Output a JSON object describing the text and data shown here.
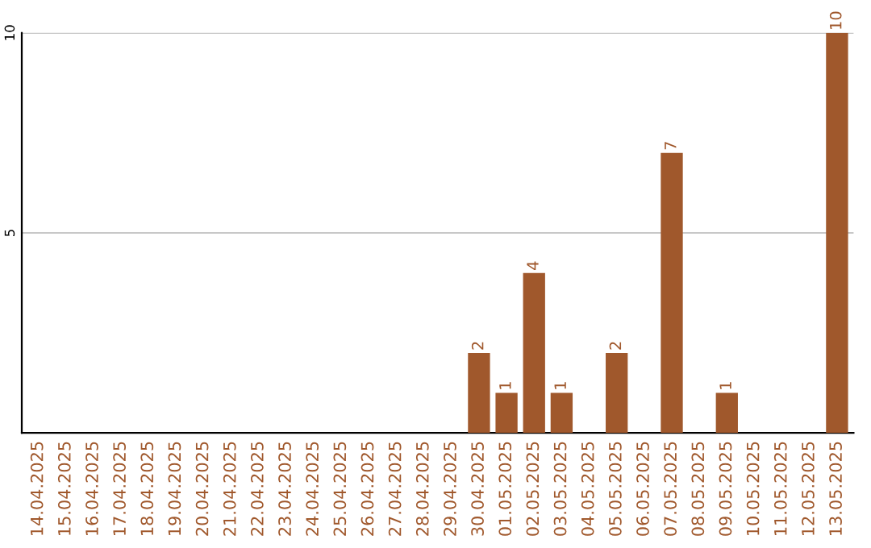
{
  "chart_data": {
    "type": "bar",
    "categories": [
      "14.04.2025",
      "15.04.2025",
      "16.04.2025",
      "17.04.2025",
      "18.04.2025",
      "19.04.2025",
      "20.04.2025",
      "21.04.2025",
      "22.04.2025",
      "23.04.2025",
      "24.04.2025",
      "25.04.2025",
      "26.04.2025",
      "27.04.2025",
      "28.04.2025",
      "29.04.2025",
      "30.04.2025",
      "01.05.2025",
      "02.05.2025",
      "03.05.2025",
      "04.05.2025",
      "05.05.2025",
      "06.05.2025",
      "07.05.2025",
      "08.05.2025",
      "09.05.2025",
      "10.05.2025",
      "11.05.2025",
      "12.05.2025",
      "13.05.2025"
    ],
    "values": [
      0,
      0,
      0,
      0,
      0,
      0,
      0,
      0,
      0,
      0,
      0,
      0,
      0,
      0,
      0,
      0,
      2,
      1,
      4,
      1,
      0,
      2,
      0,
      7,
      0,
      1,
      0,
      0,
      0,
      10
    ],
    "value_labels": [
      null,
      null,
      null,
      null,
      null,
      null,
      null,
      null,
      null,
      null,
      null,
      null,
      null,
      null,
      null,
      null,
      "2",
      "1",
      "4",
      "1",
      null,
      "2",
      null,
      "7",
      null,
      "1",
      null,
      null,
      null,
      "10"
    ],
    "color": "#a0582c",
    "ylim": [
      0,
      10
    ],
    "yticks": [
      5,
      10
    ],
    "grid": "y"
  }
}
